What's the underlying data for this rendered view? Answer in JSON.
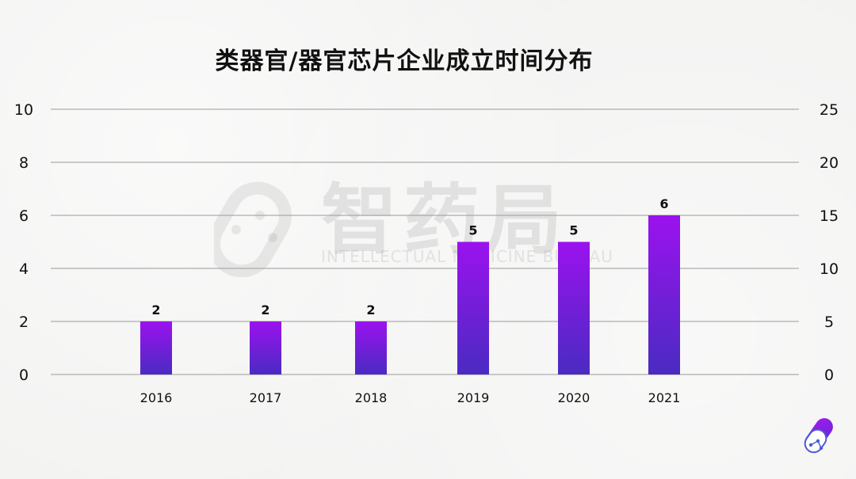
{
  "title": "类器官/器官芯片企业成立时间分布",
  "watermark": {
    "brand": "智药局",
    "subtitle": "INTELLECTUAL MEDICINE BUREAU"
  },
  "colors": {
    "bar_top": "#9b12ee",
    "bar_bottom": "#4a2bc2",
    "grid": "#9a9a9a",
    "text": "#111111"
  },
  "chart_data": {
    "type": "bar",
    "categories": [
      "2016",
      "2017",
      "2018",
      "2019",
      "2020",
      "2021"
    ],
    "values": [
      2,
      2,
      2,
      5,
      5,
      6
    ],
    "ylim": [
      0,
      10
    ],
    "y_ticks": [
      "0",
      "2",
      "4",
      "6",
      "8",
      "10"
    ],
    "y2lim": [
      0,
      25
    ],
    "y2_ticks": [
      "0",
      "5",
      "10",
      "15",
      "20",
      "25"
    ],
    "data_labels": [
      "2",
      "2",
      "2",
      "5",
      "5",
      "6"
    ],
    "grid": true,
    "legend": "none"
  }
}
